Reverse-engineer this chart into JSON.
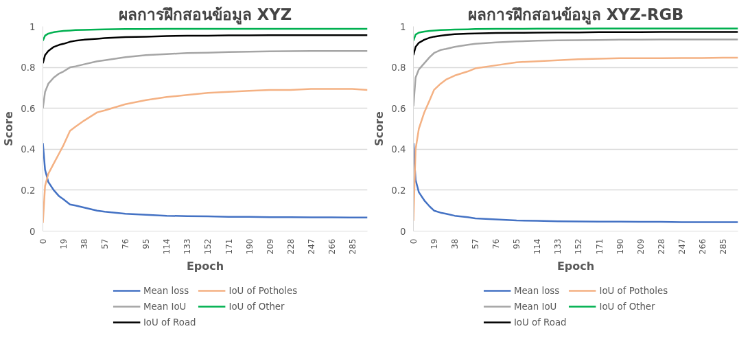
{
  "chart_data": [
    {
      "type": "line",
      "title": "ผลการฝึกสอนข้อมูล XYZ",
      "xlabel": "Epoch",
      "ylabel": "Score",
      "x": [
        0,
        2,
        5,
        10,
        15,
        19,
        25,
        30,
        38,
        50,
        57,
        76,
        95,
        114,
        133,
        152,
        171,
        190,
        209,
        228,
        247,
        266,
        285,
        299
      ],
      "xlim": [
        0,
        299
      ],
      "xticks": [
        0,
        19,
        38,
        57,
        76,
        95,
        114,
        133,
        152,
        171,
        190,
        209,
        228,
        247,
        266,
        285
      ],
      "ylim": [
        0,
        1
      ],
      "yticks": [
        0,
        0.2,
        0.4,
        0.6,
        0.8,
        1
      ],
      "grid": "y",
      "legend": "bottom",
      "line_style": "solid",
      "marker": "none",
      "series": [
        {
          "name": "Mean loss",
          "color": "#4472c4",
          "values": [
            0.43,
            0.3,
            0.24,
            0.2,
            0.17,
            0.155,
            0.13,
            0.125,
            0.115,
            0.1,
            0.095,
            0.085,
            0.08,
            0.075,
            0.073,
            0.072,
            0.07,
            0.07,
            0.068,
            0.068,
            0.067,
            0.067,
            0.066,
            0.066
          ]
        },
        {
          "name": "Mean IoU",
          "color": "#a5a5a5",
          "values": [
            0.6,
            0.68,
            0.72,
            0.75,
            0.77,
            0.78,
            0.8,
            0.805,
            0.815,
            0.83,
            0.835,
            0.85,
            0.86,
            0.865,
            0.87,
            0.872,
            0.875,
            0.877,
            0.878,
            0.879,
            0.88,
            0.88,
            0.88,
            0.88
          ]
        },
        {
          "name": "IoU of Road",
          "color": "#000000",
          "values": [
            0.82,
            0.86,
            0.88,
            0.9,
            0.91,
            0.915,
            0.925,
            0.93,
            0.935,
            0.94,
            0.943,
            0.948,
            0.95,
            0.953,
            0.955,
            0.955,
            0.956,
            0.956,
            0.957,
            0.957,
            0.957,
            0.957,
            0.957,
            0.957
          ]
        },
        {
          "name": "IoU of Potholes",
          "color": "#f4b183",
          "values": [
            0.04,
            0.22,
            0.28,
            0.33,
            0.38,
            0.42,
            0.49,
            0.51,
            0.54,
            0.58,
            0.59,
            0.62,
            0.64,
            0.655,
            0.665,
            0.675,
            0.68,
            0.685,
            0.69,
            0.69,
            0.695,
            0.695,
            0.695,
            0.69
          ]
        },
        {
          "name": "IoU of Other",
          "color": "#00b050",
          "values": [
            0.93,
            0.955,
            0.965,
            0.972,
            0.976,
            0.978,
            0.98,
            0.982,
            0.983,
            0.985,
            0.986,
            0.987,
            0.987,
            0.988,
            0.988,
            0.988,
            0.988,
            0.988,
            0.988,
            0.988,
            0.988,
            0.988,
            0.988,
            0.988
          ]
        }
      ]
    },
    {
      "type": "line",
      "title": "ผลการฝึกสอนข้อมูล XYZ-RGB",
      "xlabel": "Epoch",
      "ylabel": "Score",
      "x": [
        0,
        2,
        5,
        10,
        15,
        19,
        25,
        30,
        38,
        50,
        57,
        76,
        95,
        114,
        133,
        152,
        171,
        190,
        209,
        228,
        247,
        266,
        285,
        299
      ],
      "xlim": [
        0,
        299
      ],
      "xticks": [
        0,
        19,
        38,
        57,
        76,
        95,
        114,
        133,
        152,
        171,
        190,
        209,
        228,
        247,
        266,
        285
      ],
      "ylim": [
        0,
        1
      ],
      "yticks": [
        0,
        0.2,
        0.4,
        0.6,
        0.8,
        1
      ],
      "grid": "y",
      "legend": "bottom",
      "line_style": "solid",
      "marker": "none",
      "series": [
        {
          "name": "Mean loss",
          "color": "#4472c4",
          "values": [
            0.43,
            0.25,
            0.19,
            0.15,
            0.12,
            0.1,
            0.09,
            0.085,
            0.075,
            0.068,
            0.062,
            0.057,
            0.052,
            0.05,
            0.048,
            0.047,
            0.046,
            0.046,
            0.045,
            0.045,
            0.044,
            0.044,
            0.044,
            0.044
          ]
        },
        {
          "name": "Mean IoU",
          "color": "#a5a5a5",
          "values": [
            0.61,
            0.75,
            0.79,
            0.82,
            0.85,
            0.87,
            0.885,
            0.89,
            0.9,
            0.91,
            0.915,
            0.922,
            0.927,
            0.93,
            0.932,
            0.933,
            0.934,
            0.935,
            0.935,
            0.936,
            0.936,
            0.936,
            0.936,
            0.936
          ]
        },
        {
          "name": "IoU of Road",
          "color": "#000000",
          "values": [
            0.86,
            0.9,
            0.92,
            0.935,
            0.945,
            0.95,
            0.955,
            0.958,
            0.962,
            0.965,
            0.966,
            0.968,
            0.969,
            0.97,
            0.971,
            0.971,
            0.972,
            0.972,
            0.972,
            0.973,
            0.973,
            0.973,
            0.973,
            0.973
          ]
        },
        {
          "name": "IoU of Potholes",
          "color": "#f4b183",
          "values": [
            0.05,
            0.4,
            0.5,
            0.58,
            0.64,
            0.69,
            0.72,
            0.74,
            0.76,
            0.78,
            0.795,
            0.81,
            0.825,
            0.83,
            0.835,
            0.84,
            0.842,
            0.845,
            0.845,
            0.845,
            0.846,
            0.846,
            0.847,
            0.847
          ]
        },
        {
          "name": "IoU of Other",
          "color": "#00b050",
          "values": [
            0.93,
            0.96,
            0.97,
            0.975,
            0.978,
            0.98,
            0.982,
            0.983,
            0.985,
            0.986,
            0.987,
            0.988,
            0.988,
            0.989,
            0.989,
            0.989,
            0.99,
            0.99,
            0.99,
            0.99,
            0.99,
            0.99,
            0.99,
            0.99
          ]
        }
      ]
    }
  ]
}
